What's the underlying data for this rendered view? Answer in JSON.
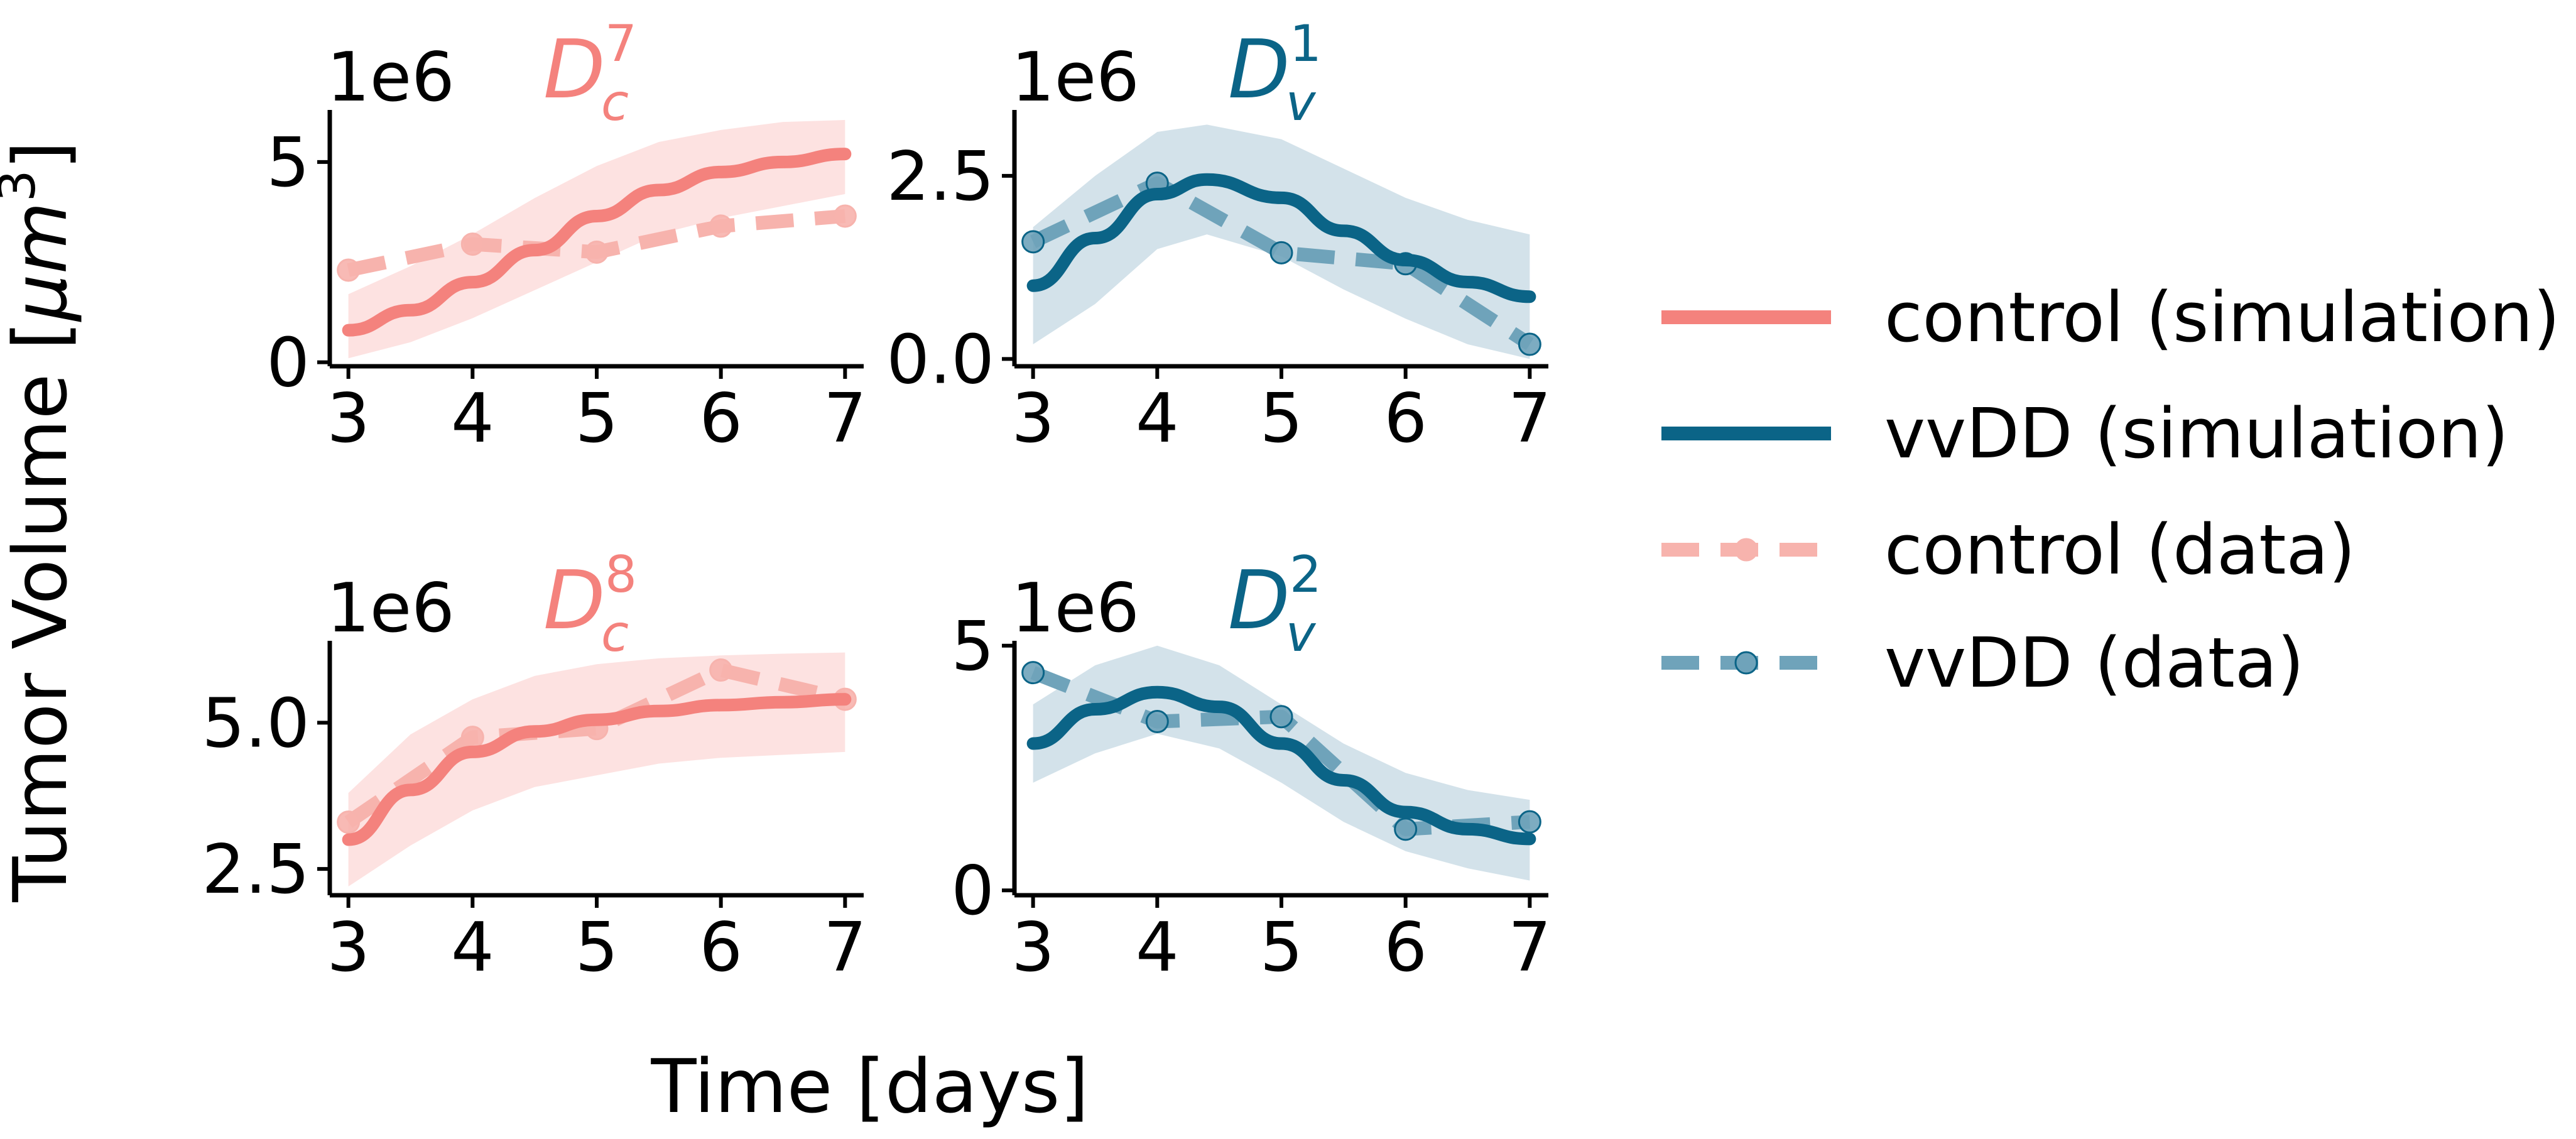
{
  "figure": {
    "xlabel": "Time [days]",
    "ylabel": "Tumor Volume [μm³]",
    "ylabel_base": "Tumor Volume [",
    "ylabel_unit": "μm",
    "ylabel_exp": "3",
    "ylabel_close": "]"
  },
  "colors": {
    "control": "#f4827d",
    "control_band": "#fde2e1",
    "control_data": "#f7b3ad",
    "vvdd": "#0b6487",
    "vvdd_band": "#d3e2ea",
    "vvdd_data": "#6fa3ba"
  },
  "legend": {
    "items": [
      {
        "label": "control (simulation)",
        "style": "control-sim"
      },
      {
        "label": "vvDD (simulation)",
        "style": "vvdd-sim"
      },
      {
        "label": "control (data)",
        "style": "control-data"
      },
      {
        "label": "vvDD (data)",
        "style": "vvdd-data"
      }
    ]
  },
  "chart_data": [
    {
      "type": "line",
      "group": "control",
      "title": {
        "base": "D",
        "sub": "c",
        "sup": "7"
      },
      "multiplier": "1e6",
      "xlim": [
        2.85,
        7.15
      ],
      "ylim": [
        -0.1,
        6.3
      ],
      "xticks": [
        3,
        4,
        5,
        6,
        7
      ],
      "xtick_labels": [
        "3",
        "4",
        "5",
        "6",
        "7"
      ],
      "yticks": [
        0,
        5
      ],
      "ytick_labels": [
        "0",
        "5"
      ],
      "simulation": {
        "x": [
          3,
          3.5,
          4,
          4.5,
          5,
          5.5,
          6,
          6.5,
          7
        ],
        "y": [
          0.8,
          1.3,
          2.0,
          2.8,
          3.65,
          4.3,
          4.75,
          5.0,
          5.2
        ],
        "lower": [
          0.1,
          0.5,
          1.1,
          1.8,
          2.5,
          3.2,
          3.6,
          3.9,
          4.2
        ],
        "upper": [
          1.7,
          2.4,
          3.2,
          4.1,
          4.9,
          5.5,
          5.8,
          6.0,
          6.05
        ]
      },
      "data": {
        "x": [
          3,
          4,
          5,
          6,
          7
        ],
        "y": [
          2.3,
          2.95,
          2.75,
          3.4,
          3.65
        ]
      }
    },
    {
      "type": "line",
      "group": "vvdd",
      "title": {
        "base": "D",
        "sub": "v",
        "sup": "1"
      },
      "multiplier": "1e6",
      "xlim": [
        2.85,
        7.15
      ],
      "ylim": [
        -0.1,
        3.4
      ],
      "xticks": [
        3,
        4,
        5,
        6,
        7
      ],
      "xtick_labels": [
        "3",
        "4",
        "5",
        "6",
        "7"
      ],
      "yticks": [
        0.0,
        2.5
      ],
      "ytick_labels": [
        "0.0",
        "2.5"
      ],
      "simulation": {
        "x": [
          3,
          3.5,
          4,
          4.4,
          5,
          5.5,
          6,
          6.5,
          7
        ],
        "y": [
          1.0,
          1.65,
          2.25,
          2.45,
          2.2,
          1.75,
          1.35,
          1.05,
          0.85
        ],
        "lower": [
          0.2,
          0.75,
          1.5,
          1.7,
          1.4,
          0.95,
          0.55,
          0.2,
          0.0
        ],
        "upper": [
          1.8,
          2.5,
          3.1,
          3.2,
          3.0,
          2.6,
          2.2,
          1.9,
          1.7
        ]
      },
      "data": {
        "x": [
          3,
          4,
          5,
          6,
          7
        ],
        "y": [
          1.6,
          2.4,
          1.45,
          1.3,
          0.2
        ]
      }
    },
    {
      "type": "line",
      "group": "control",
      "title": {
        "base": "D",
        "sub": "c",
        "sup": "8"
      },
      "multiplier": "1e6",
      "xlim": [
        2.85,
        7.15
      ],
      "ylim": [
        2.05,
        6.4
      ],
      "xticks": [
        3,
        4,
        5,
        6,
        7
      ],
      "xtick_labels": [
        "3",
        "4",
        "5",
        "6",
        "7"
      ],
      "yticks": [
        2.5,
        5.0
      ],
      "ytick_labels": [
        "2.5",
        "5.0"
      ],
      "simulation": {
        "x": [
          3,
          3.5,
          4,
          4.5,
          5,
          5.5,
          6,
          6.5,
          7
        ],
        "y": [
          3.0,
          3.85,
          4.5,
          4.85,
          5.05,
          5.2,
          5.3,
          5.35,
          5.4
        ],
        "lower": [
          2.2,
          2.9,
          3.5,
          3.9,
          4.1,
          4.3,
          4.4,
          4.45,
          4.5
        ],
        "upper": [
          3.8,
          4.8,
          5.4,
          5.8,
          6.0,
          6.1,
          6.15,
          6.18,
          6.2
        ]
      },
      "data": {
        "x": [
          3,
          4,
          5,
          6,
          7
        ],
        "y": [
          3.3,
          4.75,
          4.9,
          5.9,
          5.4
        ]
      }
    },
    {
      "type": "line",
      "group": "vvdd",
      "title": {
        "base": "D",
        "sub": "v",
        "sup": "2"
      },
      "multiplier": "1e6",
      "xlim": [
        2.85,
        7.15
      ],
      "ylim": [
        -0.1,
        5.1
      ],
      "xticks": [
        3,
        4,
        5,
        6,
        7
      ],
      "xtick_labels": [
        "3",
        "4",
        "5",
        "6",
        "7"
      ],
      "yticks": [
        0,
        5
      ],
      "ytick_labels": [
        "0",
        "5"
      ],
      "simulation": {
        "x": [
          3,
          3.5,
          4,
          4.5,
          5,
          5.5,
          6,
          6.5,
          7
        ],
        "y": [
          3.0,
          3.7,
          4.05,
          3.75,
          3.0,
          2.25,
          1.6,
          1.25,
          1.05
        ],
        "lower": [
          2.2,
          2.8,
          3.2,
          2.9,
          2.2,
          1.4,
          0.8,
          0.45,
          0.2
        ],
        "upper": [
          3.8,
          4.6,
          5.0,
          4.6,
          3.8,
          3.0,
          2.4,
          2.05,
          1.85
        ]
      },
      "data": {
        "x": [
          3,
          4,
          5,
          6,
          7
        ],
        "y": [
          4.45,
          3.45,
          3.55,
          1.25,
          1.4
        ]
      }
    }
  ]
}
